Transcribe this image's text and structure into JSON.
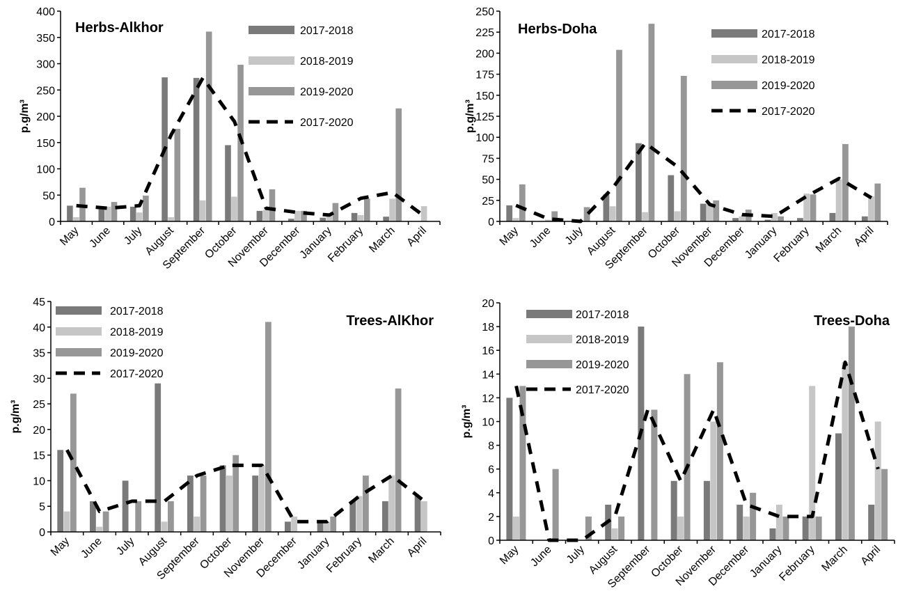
{
  "figure_colors": {
    "2017-2018": "#7a7a7a",
    "2018-2019": "#c6c6c6",
    "2019-2020": "#979797",
    "2017-2020": "#000000"
  },
  "chart_data": [
    {
      "type": "bar",
      "title": "Herbs-Alkhor",
      "ylabel": "p.g/m³",
      "ylim": [
        0,
        400
      ],
      "yticks": [
        0,
        50,
        100,
        150,
        200,
        250,
        300,
        350,
        400
      ],
      "categories": [
        "May",
        "June",
        "July",
        "August",
        "September",
        "October",
        "November",
        "December",
        "January",
        "February",
        "March",
        "April"
      ],
      "series": [
        {
          "name": "2017-2018",
          "kind": "bar",
          "values": [
            30,
            23,
            28,
            274,
            273,
            145,
            20,
            5,
            7,
            16,
            9,
            0
          ]
        },
        {
          "name": "2018-2019",
          "kind": "bar",
          "values": [
            8,
            28,
            17,
            8,
            40,
            47,
            22,
            20,
            12,
            12,
            43,
            29
          ]
        },
        {
          "name": "2019-2020",
          "kind": "bar",
          "values": [
            64,
            37,
            49,
            176,
            361,
            298,
            61,
            20,
            35,
            43,
            215,
            0
          ]
        },
        {
          "name": "2017-2020",
          "kind": "dashed-line",
          "values": [
            30,
            25,
            30,
            165,
            273,
            190,
            25,
            17,
            12,
            44,
            55,
            10
          ]
        }
      ],
      "legend": "top-right"
    },
    {
      "type": "bar",
      "title": "Herbs-Doha",
      "ylabel": "p.g/m³",
      "ylim": [
        0,
        250
      ],
      "yticks": [
        0,
        25,
        50,
        75,
        100,
        125,
        150,
        175,
        200,
        225,
        250
      ],
      "categories": [
        "May",
        "June",
        "July",
        "August",
        "September",
        "October",
        "November",
        "December",
        "January",
        "February",
        "March",
        "April"
      ],
      "series": [
        {
          "name": "2017-2018",
          "kind": "bar",
          "values": [
            19,
            0,
            0,
            32,
            93,
            55,
            21,
            4,
            2,
            4,
            10,
            6
          ]
        },
        {
          "name": "2018-2019",
          "kind": "bar",
          "values": [
            4,
            2,
            0,
            18,
            11,
            12,
            20,
            6,
            10,
            33,
            50,
            30
          ]
        },
        {
          "name": "2019-2020",
          "kind": "bar",
          "values": [
            44,
            12,
            17,
            204,
            235,
            173,
            25,
            14,
            6,
            32,
            92,
            45
          ]
        },
        {
          "name": "2017-2020",
          "kind": "dashed-line",
          "values": [
            19,
            3,
            0,
            40,
            93,
            65,
            20,
            8,
            6,
            30,
            51,
            28
          ]
        }
      ],
      "legend": "top-right"
    },
    {
      "type": "bar",
      "title": "Trees-AlKhor",
      "ylabel": "p.g/m³",
      "ylim": [
        0,
        45
      ],
      "yticks": [
        0,
        5,
        10,
        15,
        20,
        25,
        30,
        35,
        40,
        45
      ],
      "categories": [
        "May",
        "June",
        "July",
        "August",
        "September",
        "October",
        "November",
        "December",
        "January",
        "February",
        "March",
        "April"
      ],
      "series": [
        {
          "name": "2017-2018",
          "kind": "bar",
          "values": [
            16,
            6,
            10,
            29,
            11,
            13,
            11,
            2,
            2,
            6,
            6,
            7
          ]
        },
        {
          "name": "2018-2019",
          "kind": "bar",
          "values": [
            4,
            1,
            0,
            2,
            3,
            11,
            13,
            3,
            2,
            7,
            11,
            6
          ]
        },
        {
          "name": "2019-2020",
          "kind": "bar",
          "values": [
            27,
            4,
            6,
            6,
            11,
            15,
            41,
            0,
            3,
            11,
            28,
            0
          ]
        },
        {
          "name": "2017-2020",
          "kind": "dashed-line",
          "values": [
            16,
            4,
            6,
            6,
            11,
            13,
            13,
            2,
            2,
            7,
            11,
            6
          ]
        }
      ],
      "legend": "top-left"
    },
    {
      "type": "bar",
      "title": "Trees-Doha",
      "ylabel": "p.g/m³",
      "ylim": [
        0,
        20
      ],
      "yticks": [
        0,
        2,
        4,
        6,
        8,
        10,
        12,
        14,
        16,
        18,
        20
      ],
      "categories": [
        "May",
        "June",
        "July",
        "August",
        "September",
        "October",
        "November",
        "December",
        "January",
        "February",
        "March",
        "April"
      ],
      "series": [
        {
          "name": "2017-2018",
          "kind": "bar",
          "values": [
            12,
            0,
            0,
            3,
            18,
            5,
            5,
            3,
            1,
            2,
            9,
            3
          ]
        },
        {
          "name": "2018-2019",
          "kind": "bar",
          "values": [
            2,
            0,
            0,
            1,
            0,
            2,
            10,
            2,
            3,
            13,
            15,
            10
          ]
        },
        {
          "name": "2019-2020",
          "kind": "bar",
          "values": [
            13,
            6,
            2,
            2,
            11,
            14,
            15,
            4,
            2,
            2,
            18,
            6
          ]
        },
        {
          "name": "2017-2020",
          "kind": "dashed-line",
          "values": [
            13,
            0,
            0,
            2,
            11,
            5,
            11,
            3,
            2,
            2,
            15,
            6
          ]
        }
      ],
      "legend": "top-left"
    }
  ]
}
